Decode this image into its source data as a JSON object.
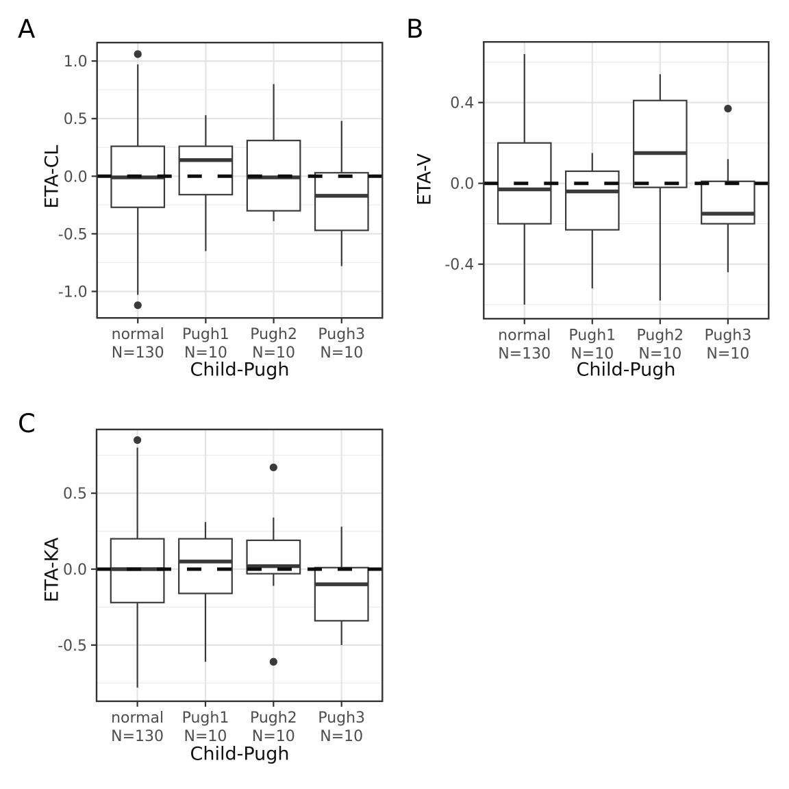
{
  "figure_title": "",
  "colors": {
    "background": "#ffffff",
    "panel_border": "#333333",
    "box_stroke": "#3a3a3a",
    "box_fill": "#ffffff",
    "grid_major": "#e4e4e4",
    "grid_minor": "#ededed",
    "ref_line": "#0d0d0d",
    "tick_text": "#4d4d4d",
    "title_text": "#111111",
    "outlier": "#3a3a3a"
  },
  "chart_data": [
    {
      "type": "boxplot",
      "panel_label": "A",
      "ylabel": "ETA-CL",
      "xlabel": "Child-Pugh",
      "ylim": [
        -1.23,
        1.16
      ],
      "y_ticks": [
        {
          "v": 1.0,
          "label": "1.0"
        },
        {
          "v": 0.5,
          "label": "0.5"
        },
        {
          "v": 0.0,
          "label": "0.0"
        },
        {
          "v": -0.5,
          "label": "-0.5"
        },
        {
          "v": -1.0,
          "label": "-1.0"
        }
      ],
      "ref_line": 0,
      "grid": true,
      "groups": [
        {
          "label": "normal",
          "count_label": "N=130",
          "whisker_low": -1.03,
          "q1": -0.27,
          "median": -0.01,
          "q3": 0.26,
          "whisker_high": 0.97,
          "outliers": [
            1.06,
            -1.12
          ]
        },
        {
          "label": "Pugh1",
          "count_label": "N=10",
          "whisker_low": -0.65,
          "q1": -0.16,
          "median": 0.14,
          "q3": 0.26,
          "whisker_high": 0.53,
          "outliers": []
        },
        {
          "label": "Pugh2",
          "count_label": "N=10",
          "whisker_low": -0.39,
          "q1": -0.3,
          "median": -0.01,
          "q3": 0.31,
          "whisker_high": 0.8,
          "outliers": []
        },
        {
          "label": "Pugh3",
          "count_label": "N=10",
          "whisker_low": -0.78,
          "q1": -0.47,
          "median": -0.17,
          "q3": 0.03,
          "whisker_high": 0.48,
          "outliers": []
        }
      ]
    },
    {
      "type": "boxplot",
      "panel_label": "B",
      "ylabel": "ETA-V",
      "xlabel": "Child-Pugh",
      "ylim": [
        -0.67,
        0.7
      ],
      "y_ticks": [
        {
          "v": 0.4,
          "label": "0.4"
        },
        {
          "v": 0.0,
          "label": "0.0"
        },
        {
          "v": -0.4,
          "label": "-0.4"
        }
      ],
      "ref_line": 0,
      "grid": true,
      "groups": [
        {
          "label": "normal",
          "count_label": "N=130",
          "whisker_low": -0.6,
          "q1": -0.2,
          "median": -0.03,
          "q3": 0.2,
          "whisker_high": 0.64,
          "outliers": []
        },
        {
          "label": "Pugh1",
          "count_label": "N=10",
          "whisker_low": -0.52,
          "q1": -0.23,
          "median": -0.04,
          "q3": 0.06,
          "whisker_high": 0.15,
          "outliers": []
        },
        {
          "label": "Pugh2",
          "count_label": "N=10",
          "whisker_low": -0.58,
          "q1": -0.02,
          "median": 0.15,
          "q3": 0.41,
          "whisker_high": 0.54,
          "outliers": []
        },
        {
          "label": "Pugh3",
          "count_label": "N=10",
          "whisker_low": -0.44,
          "q1": -0.2,
          "median": -0.15,
          "q3": 0.01,
          "whisker_high": 0.12,
          "outliers": [
            0.37
          ]
        }
      ]
    },
    {
      "type": "boxplot",
      "panel_label": "C",
      "ylabel": "ETA-KA",
      "xlabel": "Child-Pugh",
      "ylim": [
        -0.87,
        0.92
      ],
      "y_ticks": [
        {
          "v": 0.5,
          "label": "0.5"
        },
        {
          "v": 0.0,
          "label": "0.0"
        },
        {
          "v": -0.5,
          "label": "-0.5"
        }
      ],
      "ref_line": 0,
      "grid": true,
      "groups": [
        {
          "label": "normal",
          "count_label": "N=130",
          "whisker_low": -0.78,
          "q1": -0.22,
          "median": 0.0,
          "q3": 0.2,
          "whisker_high": 0.8,
          "outliers": [
            0.85
          ]
        },
        {
          "label": "Pugh1",
          "count_label": "N=10",
          "whisker_low": -0.61,
          "q1": -0.16,
          "median": 0.05,
          "q3": 0.2,
          "whisker_high": 0.31,
          "outliers": []
        },
        {
          "label": "Pugh2",
          "count_label": "N=10",
          "whisker_low": -0.11,
          "q1": -0.03,
          "median": 0.02,
          "q3": 0.19,
          "whisker_high": 0.34,
          "outliers": [
            0.67,
            -0.61
          ]
        },
        {
          "label": "Pugh3",
          "count_label": "N=10",
          "whisker_low": -0.5,
          "q1": -0.34,
          "median": -0.1,
          "q3": 0.01,
          "whisker_high": 0.28,
          "outliers": []
        }
      ]
    }
  ]
}
